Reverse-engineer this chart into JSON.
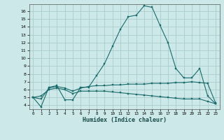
{
  "xlabel": "Humidex (Indice chaleur)",
  "background_color": "#cce8e8",
  "grid_color": "#aacccc",
  "line_color": "#1a6b6b",
  "xlim": [
    -0.5,
    23.5
  ],
  "ylim": [
    3.5,
    16.9
  ],
  "xticks": [
    0,
    1,
    2,
    3,
    4,
    5,
    6,
    7,
    8,
    9,
    10,
    11,
    12,
    13,
    14,
    15,
    16,
    17,
    18,
    19,
    20,
    21,
    22,
    23
  ],
  "yticks": [
    4,
    5,
    6,
    7,
    8,
    9,
    10,
    11,
    12,
    13,
    14,
    15,
    16
  ],
  "line1_y": [
    5.0,
    3.8,
    6.3,
    6.5,
    4.7,
    4.7,
    6.3,
    6.3,
    7.8,
    9.3,
    11.5,
    13.7,
    15.3,
    15.5,
    16.7,
    16.5,
    14.2,
    12.0,
    8.7,
    7.5,
    7.5,
    8.7,
    5.2,
    4.2
  ],
  "line2_y": [
    5.0,
    4.8,
    6.2,
    6.4,
    6.2,
    5.8,
    6.2,
    6.4,
    6.5,
    6.5,
    6.6,
    6.6,
    6.7,
    6.7,
    6.7,
    6.8,
    6.8,
    6.8,
    6.9,
    6.9,
    7.0,
    6.9,
    6.8,
    4.3
  ],
  "line3_y": [
    5.0,
    5.2,
    6.0,
    6.2,
    6.0,
    5.5,
    5.8,
    5.8,
    5.8,
    5.8,
    5.7,
    5.6,
    5.5,
    5.4,
    5.3,
    5.2,
    5.1,
    5.0,
    4.9,
    4.8,
    4.8,
    4.8,
    4.5,
    4.2
  ]
}
